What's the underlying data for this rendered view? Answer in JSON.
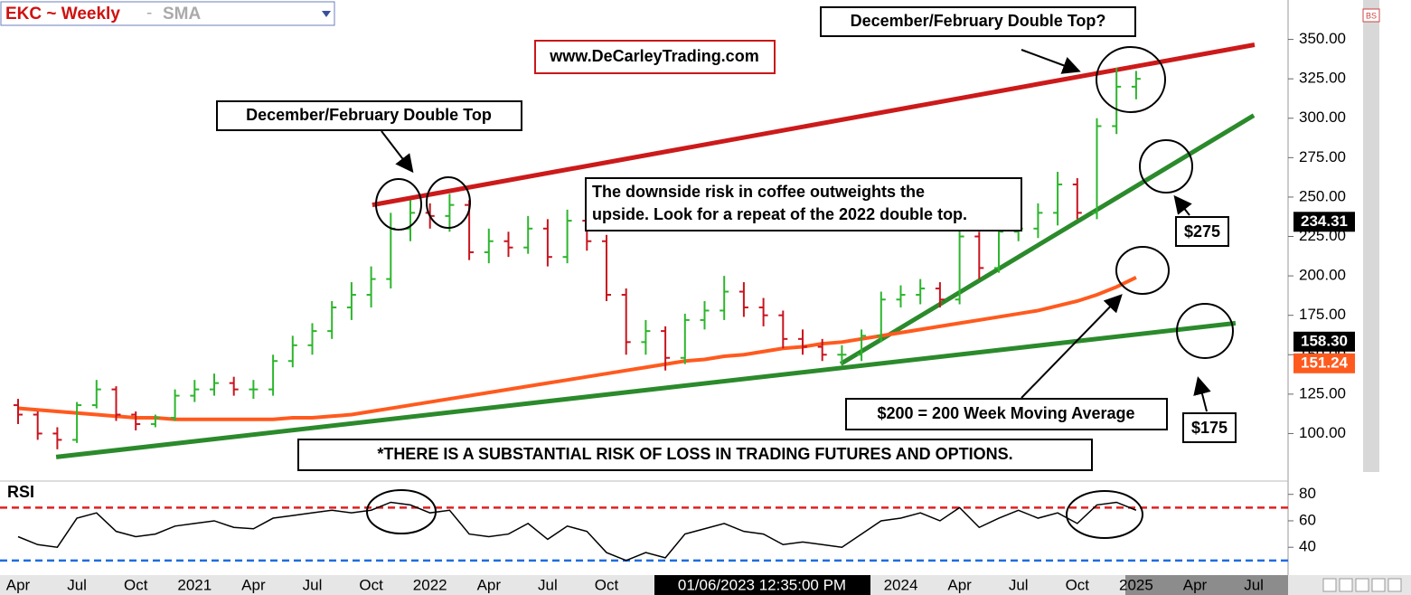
{
  "header": {
    "symbol": "EKC ~ Weekly",
    "separator": "-",
    "study": "SMA",
    "badge": "BS"
  },
  "annotations": {
    "website": "www.DeCarleyTrading.com",
    "question": "December/February Double Top?",
    "past_top": "December/February Double Top",
    "comment": [
      "The downside risk in coffee outweights the",
      "upside. Look for a repeat of the 2022 double top."
    ],
    "target_upper": "$275",
    "moving_average_note": "$200 = 200 Week Moving Average",
    "target_lower": "$175",
    "disclaimer": "*THERE IS A SUBSTANTIAL RISK OF LOSS IN TRADING FUTURES AND OPTIONS.",
    "cursor_time": "01/06/2023 12:35:00 PM"
  },
  "chart_data": [
    {
      "type": "ohlc",
      "categories": [
        "Apr",
        null,
        null,
        "Jul",
        null,
        null,
        "Oct",
        null,
        null,
        "2021",
        null,
        null,
        "Apr",
        null,
        null,
        "Jul",
        null,
        null,
        "Oct",
        null,
        null,
        "2022",
        null,
        null,
        "Apr",
        null,
        null,
        "Jul",
        null,
        null,
        "Oct",
        null,
        null,
        null,
        null,
        null,
        null,
        null,
        null,
        null,
        null,
        null,
        null,
        null,
        null,
        "2024",
        null,
        null,
        "Apr",
        null,
        null,
        "Jul",
        null,
        null,
        "Oct",
        null,
        null,
        "2025",
        null,
        null,
        "Apr",
        null,
        null,
        "Jul"
      ],
      "open": [
        118,
        112,
        100,
        96,
        118,
        128,
        112,
        106,
        110,
        124,
        128,
        132,
        128,
        128,
        146,
        156,
        165,
        180,
        188,
        198,
        230,
        240,
        238,
        245,
        215,
        222,
        218,
        230,
        212,
        235,
        222,
        188,
        158,
        165,
        148,
        172,
        178,
        190,
        180,
        175,
        160,
        155,
        150,
        150,
        162,
        185,
        188,
        192,
        185,
        225,
        205,
        228,
        230,
        240,
        258,
        240,
        295,
        320,
        null,
        null,
        null,
        null,
        null,
        null
      ],
      "high": [
        122,
        114,
        104,
        120,
        134,
        130,
        114,
        112,
        128,
        134,
        138,
        136,
        134,
        150,
        162,
        170,
        184,
        196,
        206,
        240,
        248,
        246,
        252,
        248,
        230,
        228,
        238,
        236,
        242,
        238,
        226,
        192,
        172,
        168,
        176,
        184,
        200,
        196,
        186,
        178,
        166,
        160,
        156,
        166,
        190,
        194,
        198,
        196,
        232,
        228,
        234,
        236,
        246,
        266,
        262,
        300,
        332,
        330,
        null,
        null,
        null,
        null,
        null,
        null
      ],
      "low": [
        106,
        96,
        90,
        94,
        116,
        108,
        102,
        104,
        108,
        120,
        124,
        124,
        122,
        124,
        142,
        150,
        160,
        172,
        180,
        192,
        222,
        230,
        228,
        210,
        208,
        212,
        214,
        206,
        208,
        216,
        184,
        150,
        150,
        140,
        144,
        166,
        172,
        174,
        168,
        154,
        150,
        146,
        144,
        146,
        158,
        180,
        182,
        180,
        182,
        198,
        202,
        222,
        224,
        232,
        236,
        236,
        290,
        312,
        null,
        null,
        null,
        null,
        null,
        null
      ],
      "close": [
        112,
        100,
        96,
        118,
        128,
        112,
        106,
        110,
        124,
        128,
        132,
        128,
        128,
        146,
        156,
        165,
        180,
        188,
        198,
        230,
        240,
        238,
        245,
        215,
        222,
        218,
        230,
        212,
        235,
        222,
        188,
        158,
        165,
        148,
        172,
        178,
        190,
        180,
        175,
        160,
        155,
        150,
        150,
        162,
        185,
        188,
        192,
        185,
        225,
        205,
        228,
        230,
        240,
        258,
        240,
        295,
        320,
        325,
        null,
        null,
        null,
        null,
        null,
        null
      ],
      "up_color": "#2db52d",
      "down_color": "#c8141e",
      "moving_average": {
        "color": "#ff5a1e",
        "values": [
          116,
          115,
          114,
          113,
          112,
          111,
          110,
          110,
          109,
          109,
          109,
          109,
          109,
          109,
          110,
          110,
          111,
          112,
          114,
          116,
          118,
          120,
          122,
          124,
          126,
          128,
          130,
          132,
          134,
          136,
          138,
          140,
          142,
          144,
          146,
          147,
          149,
          150,
          152,
          154,
          155,
          157,
          158,
          160,
          162,
          164,
          166,
          168,
          170,
          172,
          174,
          176,
          178,
          181,
          184,
          188,
          193,
          199,
          null,
          null,
          null,
          null,
          null,
          null
        ]
      },
      "trendlines": [
        {
          "color": "#cc1a1a",
          "points": [
            [
              18.06,
              245
            ],
            [
              63.04,
              346.6
            ]
          ]
        },
        {
          "color": "#2b8a2b",
          "points": [
            [
              41.94,
              144.2
            ],
            [
              63.0,
              301.8
            ]
          ]
        },
        {
          "color": "#2b8a2b",
          "points": [
            [
              1.94,
              85.1
            ],
            [
              62.07,
              170
            ]
          ]
        }
      ],
      "ylim": [
        71,
        375
      ],
      "yticks": [
        {
          "value": 100,
          "label": "100.00"
        },
        {
          "value": 125,
          "label": "125.00"
        },
        {
          "value": 150,
          "label": "150.00"
        },
        {
          "value": 175,
          "label": "175.00"
        },
        {
          "value": 200,
          "label": "200.00"
        },
        {
          "value": 225,
          "label": "225.00"
        },
        {
          "value": 250,
          "label": "250.00"
        },
        {
          "value": 275,
          "label": "275.00"
        },
        {
          "value": 300,
          "label": "300.00"
        },
        {
          "value": 325,
          "label": "325.00"
        },
        {
          "value": 350,
          "label": "350.00"
        }
      ],
      "price_tags": [
        {
          "value": 234.31,
          "label": "234.31",
          "color": "#000000"
        },
        {
          "value": 158.3,
          "label": "158.30",
          "color": "#000000"
        },
        {
          "value": 151.24,
          "label": "151.24",
          "color": "#ff5a1e"
        }
      ],
      "grid": false
    },
    {
      "type": "line",
      "title": "RSI",
      "values": [
        48,
        42,
        40,
        62,
        66,
        52,
        48,
        50,
        56,
        58,
        60,
        55,
        54,
        62,
        64,
        66,
        68,
        66,
        68,
        74,
        72,
        66,
        68,
        50,
        48,
        50,
        58,
        46,
        56,
        52,
        36,
        30,
        36,
        32,
        50,
        54,
        58,
        52,
        50,
        42,
        44,
        42,
        40,
        50,
        60,
        62,
        66,
        60,
        70,
        55,
        62,
        68,
        62,
        66,
        58,
        72,
        74,
        68,
        null,
        null,
        null,
        null,
        null,
        null
      ],
      "color": "#000000",
      "ref_lines": [
        {
          "value": 70,
          "color": "#e02020"
        },
        {
          "value": 30,
          "color": "#1e6ee0"
        }
      ],
      "ylim": [
        21,
        88
      ],
      "yticks": [
        40,
        60,
        80
      ],
      "grid": false
    }
  ]
}
